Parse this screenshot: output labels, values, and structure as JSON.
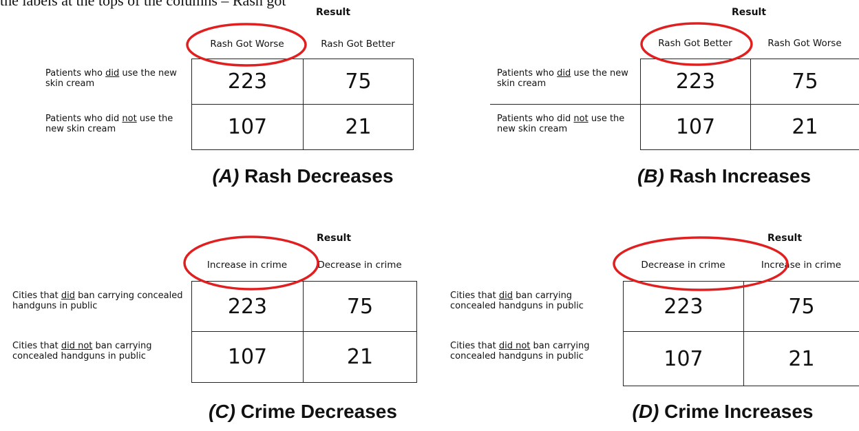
{
  "intro_text": "the labels at the tops of the columns – Rash got",
  "panels": [
    {
      "tag": "(A)",
      "caption": "Rash Decreases",
      "result": "Result",
      "columns": [
        "Rash Got Worse",
        "Rash Got Better"
      ],
      "rows": [
        {
          "label": [
            "Patients who ",
            "did",
            " use the new skin cream"
          ],
          "values": [
            223,
            75
          ]
        },
        {
          "label": [
            "Patients who did ",
            "not",
            " use the new skin cream"
          ],
          "values": [
            107,
            21
          ]
        }
      ]
    },
    {
      "tag": "(B)",
      "caption": "Rash Increases",
      "result": "Result",
      "columns": [
        "Rash Got Better",
        "Rash Got Worse"
      ],
      "rows": [
        {
          "label": [
            "Patients who ",
            "did",
            " use the new skin cream"
          ],
          "values": [
            223,
            75
          ]
        },
        {
          "label": [
            "Patients who did ",
            "not",
            " use the new skin cream"
          ],
          "values": [
            107,
            21
          ]
        }
      ]
    },
    {
      "tag": "(C)",
      "caption": "Crime Decreases",
      "result": "Result",
      "columns": [
        "Increase in crime",
        "Decrease in crime"
      ],
      "rows": [
        {
          "label": [
            "Cities that ",
            "did",
            " ban carrying concealed handguns in public"
          ],
          "values": [
            223,
            75
          ]
        },
        {
          "label": [
            "Cities that ",
            "did not",
            " ban carrying concealed handguns in public"
          ],
          "values": [
            107,
            21
          ]
        }
      ]
    },
    {
      "tag": "(D)",
      "caption": "Crime Increases",
      "result": "Result",
      "columns": [
        "Decrease in crime",
        "Increase in crime"
      ],
      "rows": [
        {
          "label": [
            "Cities that ",
            "did",
            " ban carrying concealed handguns in public"
          ],
          "values": [
            223,
            75
          ]
        },
        {
          "label": [
            "Cities that ",
            "did not",
            " ban carrying concealed handguns in public"
          ],
          "values": [
            107,
            21
          ]
        }
      ]
    }
  ]
}
